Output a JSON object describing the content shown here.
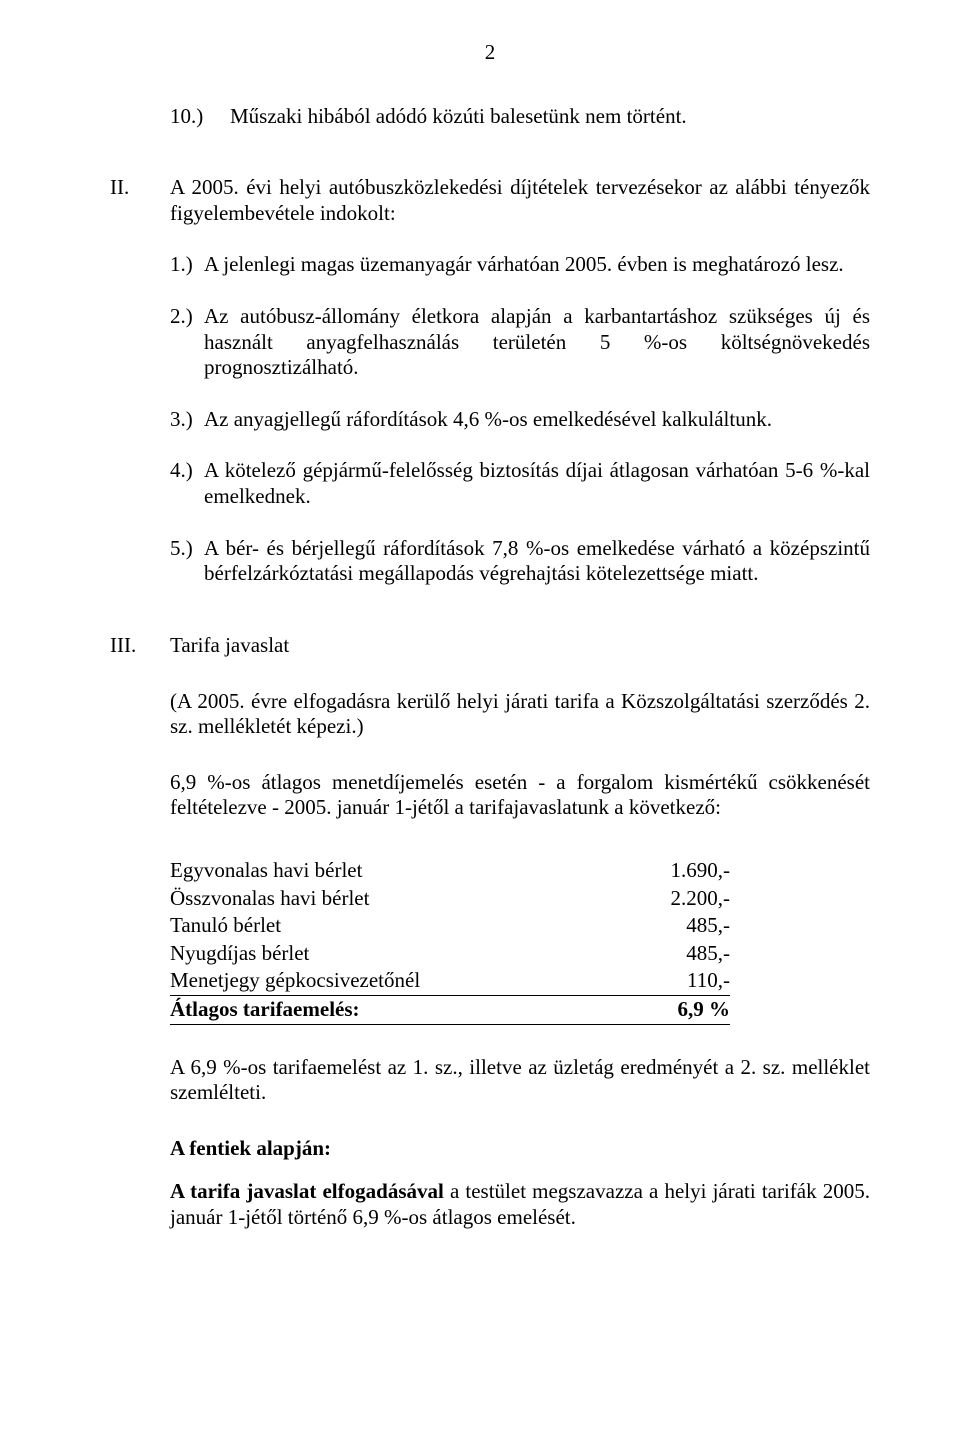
{
  "page_number": "2",
  "section_10": {
    "label": "10.)",
    "text": "Műszaki hibából adódó közúti balesetünk nem történt."
  },
  "section_II": {
    "label": "II.",
    "intro": "A 2005. évi helyi autóbuszközlekedési díjtételek tervezésekor az alábbi tényezők figyelembevétele indokolt:",
    "items": [
      {
        "n": "1.)",
        "t": "A jelenlegi magas üzemanyagár várhatóan 2005. évben is meghatározó lesz."
      },
      {
        "n": "2.)",
        "t": "Az autóbusz-állomány életkora alapján a karbantartáshoz szükséges új és használt anyagfelhasználás területén 5 %-os költségnövekedés prognosztizálható."
      },
      {
        "n": "3.)",
        "t": "Az anyagjellegű ráfordítások 4,6 %-os emelkedésével kalkuláltunk."
      },
      {
        "n": "4.)",
        "t": "A kötelező gépjármű-felelősség biztosítás díjai átlagosan várhatóan 5-6 %-kal emelkednek."
      },
      {
        "n": "5.)",
        "t": "A bér- és bérjellegű ráfordítások 7,8 %-os emelkedése várható a középszintű bérfelzárkóztatási megállapodás végrehajtási kötelezettsége miatt."
      }
    ]
  },
  "section_III": {
    "label": "III.",
    "title": "Tarifa javaslat",
    "p1": "(A 2005. évre elfogadásra kerülő helyi járati tarifa a Közszolgáltatási szerződés 2. sz. mellékletét képezi.)",
    "p2": "6,9 %-os átlagos menetdíjemelés esetén - a forgalom kismértékű csökkenését feltételezve - 2005. január 1-jétől a tarifajavaslatunk a következő:",
    "table": [
      {
        "label": "Egyvonalas havi bérlet",
        "value": "1.690,-",
        "underline": false,
        "bold": false
      },
      {
        "label": "Összvonalas havi bérlet",
        "value": "2.200,-",
        "underline": false,
        "bold": false
      },
      {
        "label": "Tanuló bérlet",
        "value": "485,-",
        "underline": false,
        "bold": false
      },
      {
        "label": "Nyugdíjas bérlet",
        "value": "485,-",
        "underline": false,
        "bold": false
      },
      {
        "label": "Menetjegy gépkocsivezetőnél",
        "value": "110,-",
        "underline": true,
        "bold": false
      },
      {
        "label": "Átlagos tarifaemelés:",
        "value": "6,9 %",
        "underline": true,
        "bold": true
      }
    ],
    "p3": "A 6,9 %-os tarifaemelést az 1. sz., illetve az üzletág eredményét a 2. sz. melléklet szemlélteti.",
    "closing_label": "A fentiek alapján:",
    "closing_bold": "A tarifa javaslat elfogadásával",
    "closing_rest": " a testület megszavazza a helyi járati tarifák 2005. január 1-jétől történő 6,9 %-os átlagos emelését."
  }
}
